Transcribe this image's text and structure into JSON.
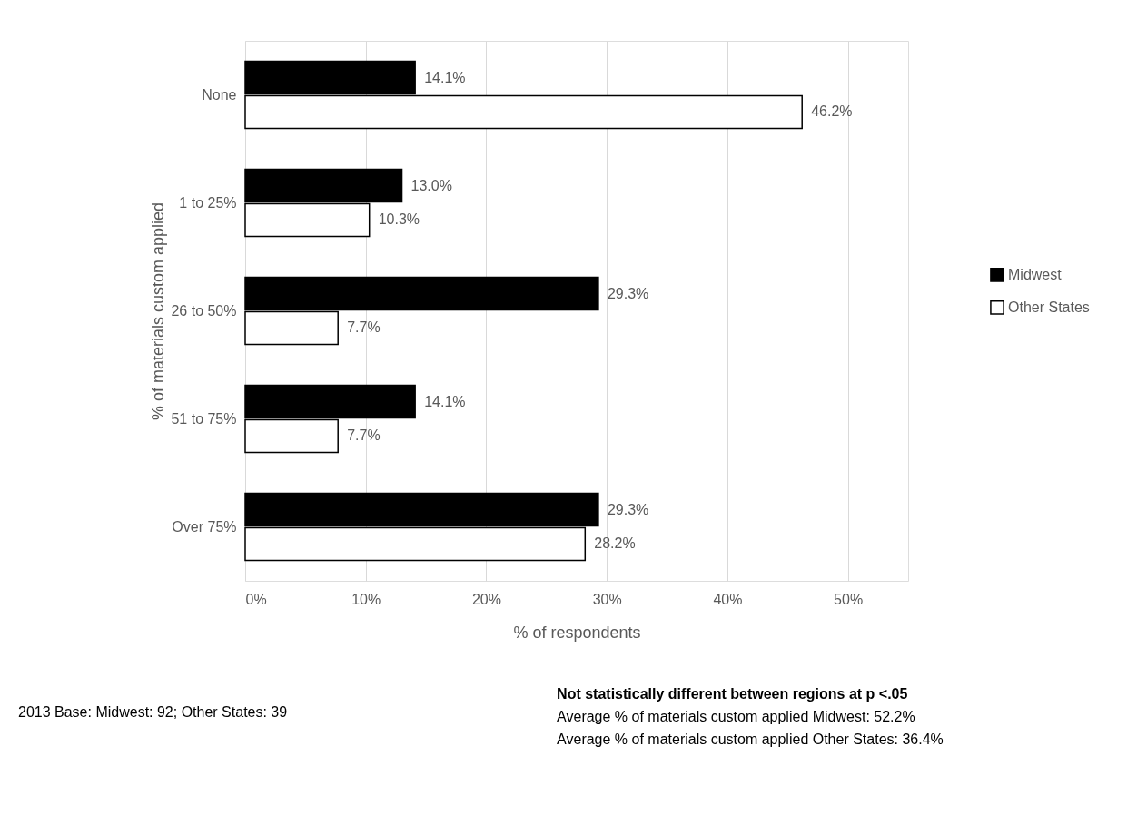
{
  "chart_data": {
    "type": "bar",
    "orientation": "horizontal",
    "categories": [
      "None",
      "1 to 25%",
      "26 to 50%",
      "51 to 75%",
      "Over 75%"
    ],
    "series": [
      {
        "name": "Midwest",
        "color": "#000000",
        "values": [
          14.1,
          13.0,
          29.3,
          14.1,
          29.3
        ],
        "value_labels": [
          "14.1%",
          "13.0%",
          "29.3%",
          "14.1%",
          "29.3%"
        ]
      },
      {
        "name": "Other States",
        "color": "#ffffff",
        "values": [
          46.2,
          10.3,
          7.7,
          7.7,
          28.2
        ],
        "value_labels": [
          "46.2%",
          "10.3%",
          "7.7%",
          "7.7%",
          "28.2%"
        ]
      }
    ],
    "xlabel": "% of respondents",
    "ylabel": "% of materials custom applied",
    "xlim": [
      0,
      55
    ],
    "xticks": [
      {
        "value": 0,
        "label": "0%"
      },
      {
        "value": 10,
        "label": "10%"
      },
      {
        "value": 20,
        "label": "20%"
      },
      {
        "value": 30,
        "label": "30%"
      },
      {
        "value": 40,
        "label": "40%"
      },
      {
        "value": 50,
        "label": "50%"
      }
    ],
    "grid": "x",
    "legend": "right",
    "annotations": [
      "2013 Base: Midwest: 92; Other States: 39",
      "Not statistically different between regions at p <.05",
      "Average % of materials custom applied Midwest: 52.2%",
      "Average % of materials custom applied Other States: 36.4%"
    ]
  }
}
